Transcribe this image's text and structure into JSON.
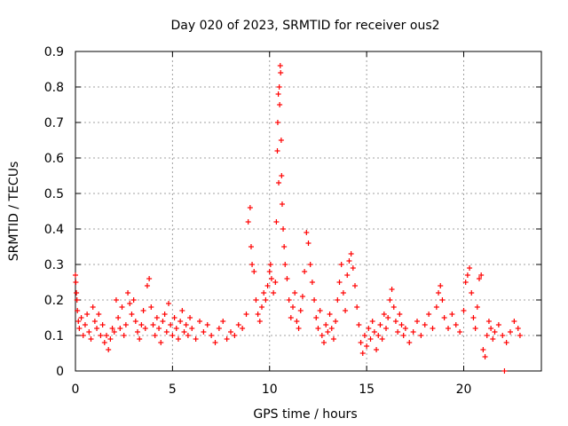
{
  "chart_data": {
    "type": "scatter",
    "title": "Day 020 of 2023, SRMTID for receiver ous2",
    "xlabel": "GPS time / hours",
    "ylabel": "SRMTID / TECUs",
    "xlim": [
      0,
      24
    ],
    "ylim": [
      0,
      0.9
    ],
    "grid": true,
    "marker": "plus",
    "color": "#ff0000",
    "x_ticks": [
      0,
      5,
      10,
      15,
      20
    ],
    "x_tick_labels": [
      "0",
      "5",
      "10",
      "15",
      "20"
    ],
    "y_ticks": [
      0,
      0.1,
      0.2,
      0.3,
      0.4,
      0.5,
      0.6,
      0.7,
      0.8,
      0.9
    ],
    "y_tick_labels": [
      "0",
      "0.1",
      "0.2",
      "0.3",
      "0.4",
      "0.5",
      "0.6",
      "0.7",
      "0.8",
      "0.9"
    ],
    "series": [
      {
        "name": "SRMTID",
        "points": [
          [
            0.0,
            0.27
          ],
          [
            0.02,
            0.25
          ],
          [
            0.05,
            0.22
          ],
          [
            0.08,
            0.2
          ],
          [
            0.1,
            0.17
          ],
          [
            0.15,
            0.14
          ],
          [
            0.2,
            0.12
          ],
          [
            0.3,
            0.15
          ],
          [
            0.4,
            0.1
          ],
          [
            0.5,
            0.13
          ],
          [
            0.6,
            0.16
          ],
          [
            0.7,
            0.11
          ],
          [
            0.8,
            0.09
          ],
          [
            0.9,
            0.18
          ],
          [
            1.0,
            0.14
          ],
          [
            1.1,
            0.12
          ],
          [
            1.2,
            0.16
          ],
          [
            1.3,
            0.1
          ],
          [
            1.4,
            0.13
          ],
          [
            1.5,
            0.08
          ],
          [
            1.6,
            0.1
          ],
          [
            1.7,
            0.06
          ],
          [
            1.8,
            0.09
          ],
          [
            1.9,
            0.12
          ],
          [
            2.0,
            0.11
          ],
          [
            2.1,
            0.2
          ],
          [
            2.2,
            0.15
          ],
          [
            2.3,
            0.12
          ],
          [
            2.4,
            0.18
          ],
          [
            2.5,
            0.1
          ],
          [
            2.6,
            0.13
          ],
          [
            2.7,
            0.22
          ],
          [
            2.8,
            0.19
          ],
          [
            2.9,
            0.16
          ],
          [
            3.0,
            0.2
          ],
          [
            3.1,
            0.14
          ],
          [
            3.2,
            0.11
          ],
          [
            3.3,
            0.09
          ],
          [
            3.4,
            0.13
          ],
          [
            3.5,
            0.17
          ],
          [
            3.6,
            0.12
          ],
          [
            3.7,
            0.24
          ],
          [
            3.8,
            0.26
          ],
          [
            3.9,
            0.18
          ],
          [
            4.0,
            0.13
          ],
          [
            4.1,
            0.1
          ],
          [
            4.2,
            0.15
          ],
          [
            4.3,
            0.12
          ],
          [
            4.4,
            0.08
          ],
          [
            4.5,
            0.14
          ],
          [
            4.6,
            0.16
          ],
          [
            4.7,
            0.11
          ],
          [
            4.8,
            0.19
          ],
          [
            4.9,
            0.13
          ],
          [
            5.0,
            0.1
          ],
          [
            5.1,
            0.15
          ],
          [
            5.2,
            0.12
          ],
          [
            5.3,
            0.09
          ],
          [
            5.4,
            0.14
          ],
          [
            5.5,
            0.17
          ],
          [
            5.6,
            0.11
          ],
          [
            5.7,
            0.13
          ],
          [
            5.8,
            0.1
          ],
          [
            5.9,
            0.15
          ],
          [
            6.0,
            0.12
          ],
          [
            6.2,
            0.09
          ],
          [
            6.4,
            0.14
          ],
          [
            6.6,
            0.11
          ],
          [
            6.8,
            0.13
          ],
          [
            7.0,
            0.1
          ],
          [
            7.2,
            0.08
          ],
          [
            7.4,
            0.12
          ],
          [
            7.6,
            0.14
          ],
          [
            7.8,
            0.09
          ],
          [
            8.0,
            0.11
          ],
          [
            8.2,
            0.1
          ],
          [
            8.4,
            0.13
          ],
          [
            8.6,
            0.12
          ],
          [
            8.8,
            0.16
          ],
          [
            8.9,
            0.42
          ],
          [
            9.0,
            0.46
          ],
          [
            9.05,
            0.35
          ],
          [
            9.1,
            0.3
          ],
          [
            9.2,
            0.28
          ],
          [
            9.3,
            0.2
          ],
          [
            9.4,
            0.16
          ],
          [
            9.5,
            0.14
          ],
          [
            9.6,
            0.18
          ],
          [
            9.7,
            0.22
          ],
          [
            9.8,
            0.2
          ],
          [
            9.9,
            0.24
          ],
          [
            10.0,
            0.28
          ],
          [
            10.05,
            0.3
          ],
          [
            10.1,
            0.26
          ],
          [
            10.2,
            0.22
          ],
          [
            10.3,
            0.25
          ],
          [
            10.35,
            0.42
          ],
          [
            10.4,
            0.62
          ],
          [
            10.42,
            0.7
          ],
          [
            10.45,
            0.78
          ],
          [
            10.47,
            0.53
          ],
          [
            10.5,
            0.8
          ],
          [
            10.52,
            0.75
          ],
          [
            10.55,
            0.86
          ],
          [
            10.57,
            0.84
          ],
          [
            10.6,
            0.65
          ],
          [
            10.62,
            0.55
          ],
          [
            10.65,
            0.47
          ],
          [
            10.7,
            0.4
          ],
          [
            10.75,
            0.35
          ],
          [
            10.8,
            0.3
          ],
          [
            10.9,
            0.26
          ],
          [
            11.0,
            0.2
          ],
          [
            11.1,
            0.15
          ],
          [
            11.2,
            0.18
          ],
          [
            11.3,
            0.22
          ],
          [
            11.4,
            0.14
          ],
          [
            11.5,
            0.12
          ],
          [
            11.6,
            0.17
          ],
          [
            11.7,
            0.21
          ],
          [
            11.8,
            0.28
          ],
          [
            11.9,
            0.39
          ],
          [
            12.0,
            0.36
          ],
          [
            12.1,
            0.3
          ],
          [
            12.2,
            0.25
          ],
          [
            12.3,
            0.2
          ],
          [
            12.4,
            0.15
          ],
          [
            12.5,
            0.12
          ],
          [
            12.6,
            0.17
          ],
          [
            12.7,
            0.1
          ],
          [
            12.8,
            0.08
          ],
          [
            12.9,
            0.13
          ],
          [
            13.0,
            0.11
          ],
          [
            13.1,
            0.16
          ],
          [
            13.2,
            0.12
          ],
          [
            13.3,
            0.09
          ],
          [
            13.4,
            0.14
          ],
          [
            13.5,
            0.2
          ],
          [
            13.6,
            0.25
          ],
          [
            13.7,
            0.3
          ],
          [
            13.8,
            0.22
          ],
          [
            13.9,
            0.17
          ],
          [
            14.0,
            0.27
          ],
          [
            14.1,
            0.31
          ],
          [
            14.2,
            0.33
          ],
          [
            14.3,
            0.29
          ],
          [
            14.4,
            0.24
          ],
          [
            14.5,
            0.18
          ],
          [
            14.6,
            0.13
          ],
          [
            14.7,
            0.08
          ],
          [
            14.8,
            0.05
          ],
          [
            14.9,
            0.1
          ],
          [
            15.0,
            0.07
          ],
          [
            15.1,
            0.12
          ],
          [
            15.2,
            0.09
          ],
          [
            15.3,
            0.14
          ],
          [
            15.4,
            0.11
          ],
          [
            15.5,
            0.06
          ],
          [
            15.6,
            0.1
          ],
          [
            15.7,
            0.13
          ],
          [
            15.8,
            0.09
          ],
          [
            15.9,
            0.16
          ],
          [
            16.0,
            0.12
          ],
          [
            16.1,
            0.15
          ],
          [
            16.2,
            0.2
          ],
          [
            16.3,
            0.23
          ],
          [
            16.4,
            0.18
          ],
          [
            16.5,
            0.14
          ],
          [
            16.6,
            0.11
          ],
          [
            16.7,
            0.16
          ],
          [
            16.8,
            0.13
          ],
          [
            16.9,
            0.1
          ],
          [
            17.0,
            0.12
          ],
          [
            17.2,
            0.08
          ],
          [
            17.4,
            0.11
          ],
          [
            17.6,
            0.14
          ],
          [
            17.8,
            0.1
          ],
          [
            18.0,
            0.13
          ],
          [
            18.2,
            0.16
          ],
          [
            18.4,
            0.12
          ],
          [
            18.6,
            0.18
          ],
          [
            18.7,
            0.22
          ],
          [
            18.8,
            0.24
          ],
          [
            18.9,
            0.2
          ],
          [
            19.0,
            0.15
          ],
          [
            19.2,
            0.12
          ],
          [
            19.4,
            0.16
          ],
          [
            19.6,
            0.13
          ],
          [
            19.8,
            0.11
          ],
          [
            20.0,
            0.17
          ],
          [
            20.1,
            0.25
          ],
          [
            20.2,
            0.27
          ],
          [
            20.3,
            0.29
          ],
          [
            20.4,
            0.22
          ],
          [
            20.5,
            0.15
          ],
          [
            20.6,
            0.12
          ],
          [
            20.7,
            0.18
          ],
          [
            20.8,
            0.26
          ],
          [
            20.9,
            0.27
          ],
          [
            21.0,
            0.06
          ],
          [
            21.1,
            0.04
          ],
          [
            21.2,
            0.1
          ],
          [
            21.3,
            0.14
          ],
          [
            21.4,
            0.12
          ],
          [
            21.5,
            0.09
          ],
          [
            21.6,
            0.11
          ],
          [
            21.8,
            0.13
          ],
          [
            22.0,
            0.1
          ],
          [
            22.1,
            0.0
          ],
          [
            22.2,
            0.08
          ],
          [
            22.4,
            0.11
          ],
          [
            22.6,
            0.14
          ],
          [
            22.8,
            0.12
          ],
          [
            22.9,
            0.1
          ]
        ]
      }
    ]
  }
}
